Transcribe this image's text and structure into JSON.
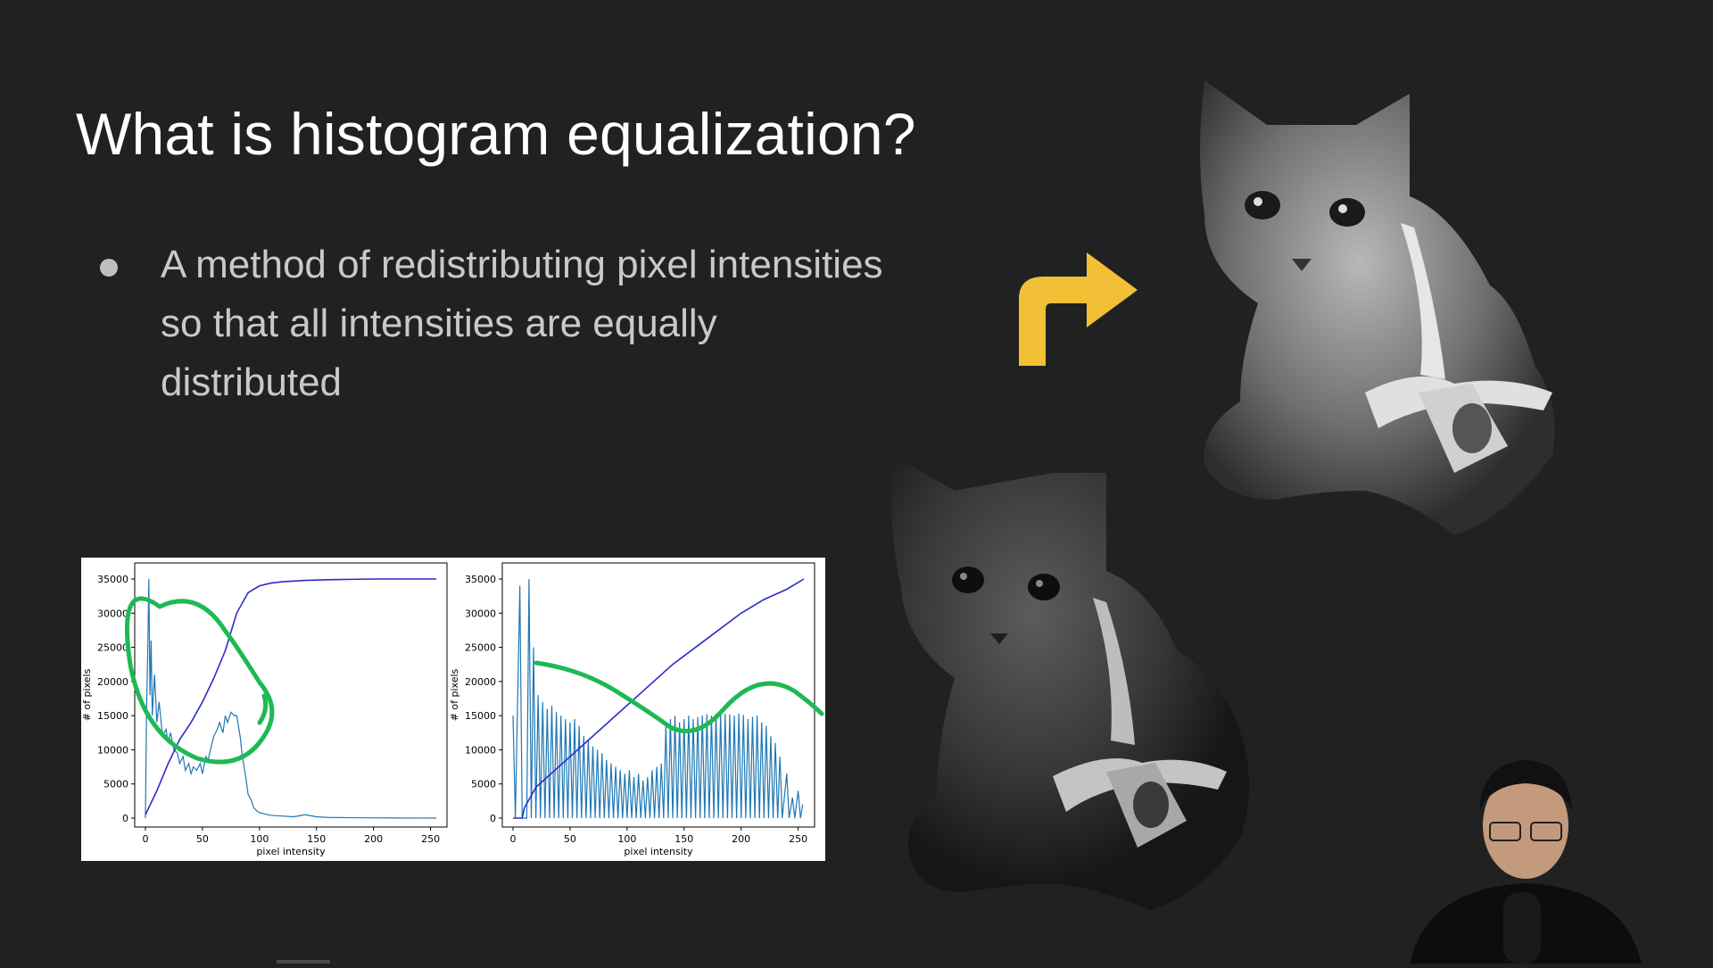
{
  "slide": {
    "title": "What is histogram equalization?",
    "bullet": "A method of redistributing pixel intensities so that all intensities are equally distributed"
  },
  "colors": {
    "background": "#212121",
    "arrow": "#f2c037",
    "hist_line": "#1f77b4",
    "cdf_line": "#2c2cc8",
    "annotation": "#1db954"
  },
  "icons": [
    "curved-arrow-icon"
  ],
  "chart_data": [
    {
      "type": "line",
      "title": "",
      "xlabel": "pixel intensity",
      "ylabel": "# of pixels",
      "xlim": [
        0,
        255
      ],
      "ylim": [
        0,
        35000
      ],
      "xticks": [
        0,
        50,
        100,
        150,
        200,
        250
      ],
      "yticks": [
        0,
        5000,
        10000,
        15000,
        20000,
        25000,
        30000,
        35000
      ],
      "grid": false,
      "series": [
        {
          "role": "histogram",
          "x": [
            0,
            1,
            2,
            3,
            4,
            5,
            6,
            8,
            10,
            12,
            15,
            18,
            20,
            22,
            25,
            28,
            30,
            33,
            35,
            38,
            40,
            42,
            45,
            48,
            50,
            53,
            55,
            57,
            60,
            63,
            65,
            68,
            70,
            72,
            75,
            78,
            80,
            83,
            85,
            88,
            90,
            93,
            95,
            98,
            100,
            105,
            110,
            120,
            130,
            140,
            150,
            160,
            180,
            200,
            220,
            240,
            255
          ],
          "y": [
            0,
            16000,
            24000,
            35000,
            18000,
            26000,
            15000,
            21000,
            14000,
            17000,
            12000,
            13000,
            11000,
            12500,
            10000,
            9500,
            8000,
            9000,
            7000,
            8000,
            6500,
            7500,
            7000,
            8000,
            6500,
            9000,
            8500,
            10000,
            12000,
            13000,
            14000,
            12500,
            15000,
            14000,
            15500,
            15000,
            15000,
            12000,
            9000,
            6000,
            3500,
            2500,
            1500,
            1000,
            800,
            600,
            400,
            300,
            200,
            500,
            200,
            100,
            60,
            40,
            20,
            10,
            0
          ]
        },
        {
          "role": "cdf",
          "x": [
            0,
            10,
            20,
            30,
            40,
            50,
            60,
            70,
            80,
            90,
            100,
            110,
            120,
            140,
            160,
            180,
            200,
            220,
            240,
            255
          ],
          "y": [
            500,
            4000,
            8000,
            11500,
            14000,
            17000,
            20500,
            24500,
            30000,
            33000,
            34000,
            34400,
            34600,
            34800,
            34900,
            34950,
            35000,
            35000,
            35000,
            35000
          ]
        }
      ]
    },
    {
      "type": "line",
      "title": "",
      "xlabel": "pixel intensity",
      "ylabel": "# of pixels",
      "xlim": [
        0,
        255
      ],
      "ylim": [
        0,
        35000
      ],
      "xticks": [
        0,
        50,
        100,
        150,
        200,
        250
      ],
      "yticks": [
        0,
        5000,
        10000,
        15000,
        20000,
        25000,
        30000,
        35000
      ],
      "grid": false,
      "series": [
        {
          "role": "histogram",
          "peaks_x": [
            0,
            6,
            10,
            14,
            18,
            22,
            26,
            30,
            34,
            38,
            42,
            46,
            50,
            54,
            58,
            62,
            66,
            70,
            74,
            78,
            82,
            86,
            90,
            94,
            98,
            102,
            106,
            110,
            114,
            118,
            122,
            126,
            130,
            134,
            138,
            142,
            146,
            150,
            154,
            158,
            162,
            166,
            170,
            174,
            178,
            182,
            186,
            190,
            194,
            198,
            202,
            206,
            210,
            214,
            218,
            222,
            226,
            230,
            234,
            240,
            245,
            250,
            254
          ],
          "peaks_y": [
            15000,
            34000,
            0,
            35000,
            25000,
            18000,
            17000,
            16000,
            16500,
            15500,
            15000,
            14500,
            14000,
            14500,
            13500,
            12000,
            11500,
            10500,
            10000,
            9500,
            8500,
            8000,
            7500,
            7000,
            6500,
            7000,
            6000,
            6500,
            5500,
            6000,
            7000,
            7500,
            8000,
            13500,
            14500,
            15000,
            14000,
            14500,
            15000,
            14500,
            14800,
            15000,
            15200,
            15000,
            15300,
            15200,
            15300,
            15200,
            15000,
            15300,
            15100,
            14500,
            14800,
            15000,
            14000,
            13500,
            12000,
            11000,
            9000,
            6500,
            3000,
            4000,
            2000
          ]
        },
        {
          "role": "cdf",
          "x": [
            0,
            8,
            10,
            15,
            20,
            40,
            60,
            80,
            100,
            120,
            140,
            160,
            180,
            200,
            220,
            240,
            255
          ],
          "y": [
            0,
            0,
            1500,
            3000,
            4500,
            7500,
            10500,
            13500,
            16500,
            19500,
            22500,
            25000,
            27500,
            30000,
            32000,
            33500,
            35000
          ]
        }
      ]
    }
  ]
}
